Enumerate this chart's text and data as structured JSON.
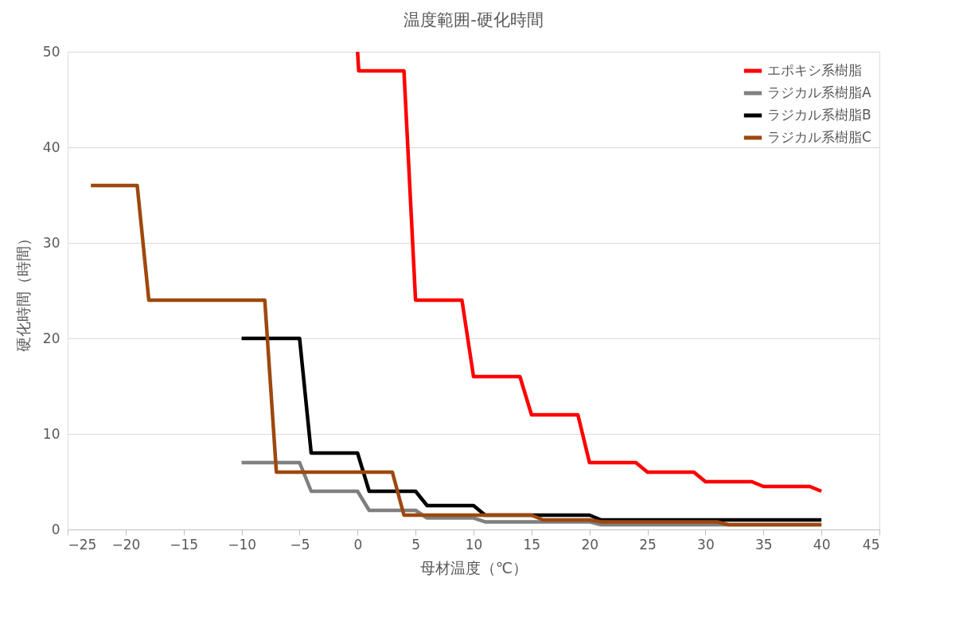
{
  "chart_data": {
    "type": "line",
    "title": "温度範囲-硬化時間",
    "xlabel": "母材温度（℃）",
    "ylabel": "硬化時間（時間）",
    "xlim": [
      -25,
      45
    ],
    "xticks": [
      -25,
      -20,
      -15,
      -10,
      -5,
      0,
      5,
      10,
      15,
      20,
      25,
      30,
      35,
      40,
      45
    ],
    "ylim": [
      0,
      50
    ],
    "yticks": [
      0,
      10,
      20,
      30,
      40,
      50
    ],
    "grid": "y",
    "legend": "top right",
    "marker": "none",
    "line_style": "solid",
    "series": [
      {
        "name": "エポキシ系樹脂",
        "color": "#ff0000",
        "x": [
          0,
          0.1,
          4,
          5,
          9,
          10,
          14,
          15,
          19,
          20,
          24,
          25,
          29,
          30,
          34,
          35,
          39,
          40
        ],
        "values": [
          50,
          48,
          48,
          24,
          24,
          16,
          16,
          12,
          12,
          7,
          7,
          6,
          6,
          5,
          5,
          4.5,
          4.5,
          4
        ]
      },
      {
        "name": "ラジカル系樹脂A",
        "color": "#808080",
        "x": [
          -10,
          -5,
          -4,
          0,
          1,
          5,
          6,
          10,
          11,
          20,
          21,
          40
        ],
        "values": [
          7,
          7,
          4,
          4,
          2,
          2,
          1.2,
          1.2,
          0.8,
          0.8,
          0.5,
          0.5
        ]
      },
      {
        "name": "ラジカル系樹脂B",
        "color": "#000000",
        "x": [
          -10,
          -5,
          -4,
          0,
          1,
          5,
          6,
          10,
          11,
          20,
          21,
          40
        ],
        "values": [
          20,
          20,
          8,
          8,
          4,
          4,
          2.5,
          2.5,
          1.5,
          1.5,
          1,
          1
        ]
      },
      {
        "name": "ラジカル系樹脂C",
        "color": "#9e480e",
        "x": [
          -23,
          -19,
          -18,
          -8,
          -7,
          3,
          4,
          15,
          16,
          20,
          21,
          31,
          32,
          40
        ],
        "values": [
          36,
          36,
          24,
          24,
          6,
          6,
          1.5,
          1.5,
          1,
          1,
          0.8,
          0.8,
          0.5,
          0.5
        ]
      }
    ]
  }
}
